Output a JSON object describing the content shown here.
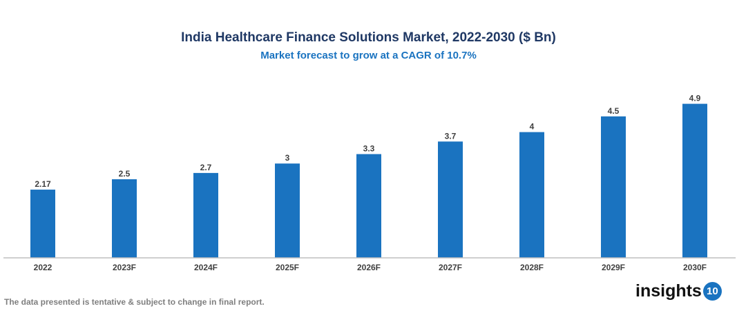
{
  "chart_data": {
    "type": "bar",
    "title": "India Healthcare Finance Solutions Market, 2022-2030 ($ Bn)",
    "subtitle": "Market forecast to grow at a CAGR of 10.7%",
    "categories": [
      "2022",
      "2023F",
      "2024F",
      "2025F",
      "2026F",
      "2027F",
      "2028F",
      "2029F",
      "2030F"
    ],
    "values": [
      2.17,
      2.5,
      2.7,
      3,
      3.3,
      3.7,
      4,
      4.5,
      4.9
    ],
    "value_labels": [
      "2.17",
      "2.5",
      "2.7",
      "3",
      "3.3",
      "3.7",
      "4",
      "4.5",
      "4.9"
    ],
    "ylim": [
      0,
      5.2
    ],
    "grid": false,
    "bar_color": "#1a73c0"
  },
  "footnote": "The data presented is tentative & subject to change in final report.",
  "logo": {
    "text": "insights",
    "badge": "10"
  }
}
